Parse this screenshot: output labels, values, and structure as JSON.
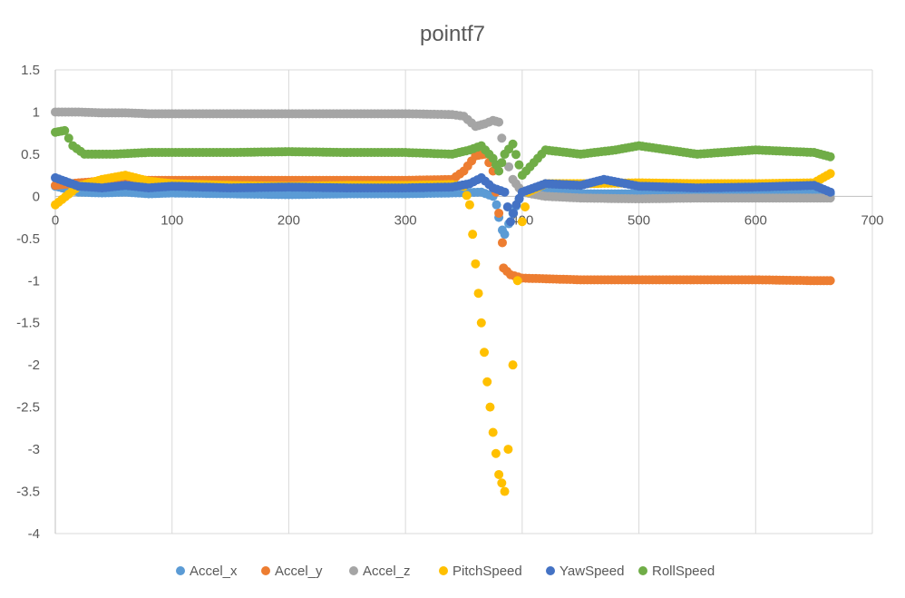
{
  "chart_data": {
    "type": "scatter",
    "title": "pointf7",
    "xlabel": "",
    "ylabel": "",
    "xlim": [
      0,
      700
    ],
    "ylim": [
      -4,
      1.5
    ],
    "x_ticks": [
      0,
      100,
      200,
      300,
      400,
      500,
      600,
      700
    ],
    "y_ticks": [
      1.5,
      1,
      0.5,
      0,
      -0.5,
      -1,
      -1.5,
      -2,
      -2.5,
      -3,
      -3.5,
      -4
    ],
    "x_tick_labels": [
      "0",
      "100",
      "200",
      "300",
      "400",
      "500",
      "600",
      "700"
    ],
    "y_tick_labels": [
      "1.5",
      "1",
      "0.5",
      "0",
      "-0.5",
      "-1",
      "-1.5",
      "-2",
      "-2.5",
      "-3",
      "-3.5",
      "-4"
    ],
    "grid": "vertical",
    "legend_position": "bottom",
    "series": [
      {
        "name": "Accel_x",
        "color": "#5B9BD5",
        "points": [
          [
            0,
            0.12
          ],
          [
            20,
            0.05
          ],
          [
            40,
            0.04
          ],
          [
            60,
            0.05
          ],
          [
            80,
            0.03
          ],
          [
            100,
            0.04
          ],
          [
            150,
            0.03
          ],
          [
            200,
            0.02
          ],
          [
            250,
            0.03
          ],
          [
            300,
            0.03
          ],
          [
            340,
            0.04
          ],
          [
            365,
            0.05
          ],
          [
            375,
            0.0
          ],
          [
            378,
            -0.1
          ],
          [
            380,
            -0.25
          ],
          [
            383,
            -0.4
          ],
          [
            385,
            -0.45
          ],
          [
            392,
            -0.2
          ],
          [
            400,
            0.05
          ],
          [
            420,
            0.05
          ],
          [
            450,
            0.03
          ],
          [
            500,
            0.03
          ],
          [
            550,
            0.03
          ],
          [
            600,
            0.03
          ],
          [
            650,
            0.03
          ],
          [
            664,
            0.03
          ]
        ]
      },
      {
        "name": "Accel_y",
        "color": "#ED7D31",
        "points": [
          [
            0,
            0.13
          ],
          [
            20,
            0.16
          ],
          [
            40,
            0.18
          ],
          [
            60,
            0.2
          ],
          [
            80,
            0.19
          ],
          [
            100,
            0.19
          ],
          [
            150,
            0.19
          ],
          [
            200,
            0.19
          ],
          [
            250,
            0.19
          ],
          [
            300,
            0.19
          ],
          [
            340,
            0.2
          ],
          [
            350,
            0.3
          ],
          [
            360,
            0.48
          ],
          [
            368,
            0.5
          ],
          [
            375,
            0.3
          ],
          [
            380,
            -0.2
          ],
          [
            383,
            -0.55
          ],
          [
            384,
            -0.85
          ],
          [
            390,
            -0.93
          ],
          [
            400,
            -0.97
          ],
          [
            450,
            -0.99
          ],
          [
            500,
            -0.99
          ],
          [
            550,
            -0.99
          ],
          [
            600,
            -0.99
          ],
          [
            650,
            -1.0
          ],
          [
            664,
            -1.0
          ]
        ]
      },
      {
        "name": "Accel_z",
        "color": "#A5A5A5",
        "points": [
          [
            0,
            1.0
          ],
          [
            20,
            1.0
          ],
          [
            40,
            0.99
          ],
          [
            60,
            0.99
          ],
          [
            80,
            0.98
          ],
          [
            100,
            0.98
          ],
          [
            150,
            0.98
          ],
          [
            200,
            0.98
          ],
          [
            250,
            0.98
          ],
          [
            300,
            0.98
          ],
          [
            340,
            0.97
          ],
          [
            350,
            0.95
          ],
          [
            360,
            0.83
          ],
          [
            368,
            0.86
          ],
          [
            375,
            0.9
          ],
          [
            380,
            0.88
          ],
          [
            385,
            0.5
          ],
          [
            392,
            0.2
          ],
          [
            400,
            0.05
          ],
          [
            420,
            0.0
          ],
          [
            450,
            -0.02
          ],
          [
            500,
            -0.03
          ],
          [
            550,
            -0.02
          ],
          [
            600,
            -0.02
          ],
          [
            650,
            -0.02
          ],
          [
            664,
            -0.02
          ]
        ]
      },
      {
        "name": "PitchSpeed",
        "color": "#FFC000",
        "points": [
          [
            0,
            -0.1
          ],
          [
            20,
            0.12
          ],
          [
            40,
            0.2
          ],
          [
            60,
            0.25
          ],
          [
            80,
            0.18
          ],
          [
            100,
            0.15
          ],
          [
            150,
            0.13
          ],
          [
            200,
            0.12
          ],
          [
            250,
            0.13
          ],
          [
            300,
            0.13
          ],
          [
            340,
            0.14
          ],
          [
            350,
            0.12
          ],
          [
            355,
            -0.1
          ],
          [
            360,
            -0.8
          ],
          [
            365,
            -1.5
          ],
          [
            370,
            -2.2
          ],
          [
            375,
            -2.8
          ],
          [
            380,
            -3.3
          ],
          [
            385,
            -3.5
          ],
          [
            388,
            -3.0
          ],
          [
            392,
            -2.0
          ],
          [
            396,
            -1.0
          ],
          [
            400,
            -0.3
          ],
          [
            405,
            0.05
          ],
          [
            420,
            0.15
          ],
          [
            450,
            0.15
          ],
          [
            500,
            0.16
          ],
          [
            550,
            0.15
          ],
          [
            600,
            0.15
          ],
          [
            650,
            0.16
          ],
          [
            664,
            0.27
          ]
        ]
      },
      {
        "name": "YawSpeed",
        "color": "#4472C4",
        "points": [
          [
            0,
            0.22
          ],
          [
            20,
            0.12
          ],
          [
            40,
            0.1
          ],
          [
            60,
            0.13
          ],
          [
            80,
            0.1
          ],
          [
            100,
            0.12
          ],
          [
            150,
            0.1
          ],
          [
            200,
            0.11
          ],
          [
            250,
            0.1
          ],
          [
            300,
            0.1
          ],
          [
            340,
            0.11
          ],
          [
            355,
            0.15
          ],
          [
            365,
            0.22
          ],
          [
            375,
            0.1
          ],
          [
            385,
            0.05
          ],
          [
            390,
            -0.3
          ],
          [
            395,
            -0.1
          ],
          [
            400,
            0.05
          ],
          [
            420,
            0.15
          ],
          [
            450,
            0.13
          ],
          [
            470,
            0.2
          ],
          [
            500,
            0.12
          ],
          [
            550,
            0.1
          ],
          [
            600,
            0.11
          ],
          [
            650,
            0.13
          ],
          [
            664,
            0.05
          ]
        ]
      },
      {
        "name": "RollSpeed",
        "color": "#70AD47",
        "points": [
          [
            0,
            0.76
          ],
          [
            8,
            0.78
          ],
          [
            15,
            0.6
          ],
          [
            25,
            0.5
          ],
          [
            50,
            0.5
          ],
          [
            80,
            0.52
          ],
          [
            100,
            0.52
          ],
          [
            150,
            0.52
          ],
          [
            200,
            0.53
          ],
          [
            250,
            0.52
          ],
          [
            300,
            0.52
          ],
          [
            340,
            0.5
          ],
          [
            355,
            0.55
          ],
          [
            365,
            0.6
          ],
          [
            375,
            0.45
          ],
          [
            380,
            0.3
          ],
          [
            385,
            0.5
          ],
          [
            392,
            0.62
          ],
          [
            400,
            0.25
          ],
          [
            410,
            0.4
          ],
          [
            420,
            0.55
          ],
          [
            450,
            0.5
          ],
          [
            480,
            0.55
          ],
          [
            500,
            0.6
          ],
          [
            550,
            0.5
          ],
          [
            600,
            0.55
          ],
          [
            650,
            0.52
          ],
          [
            664,
            0.47
          ]
        ]
      }
    ]
  }
}
